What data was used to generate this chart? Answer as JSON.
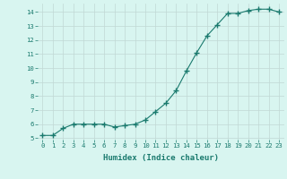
{
  "x": [
    0,
    1,
    2,
    3,
    4,
    5,
    6,
    7,
    8,
    9,
    10,
    11,
    12,
    13,
    14,
    15,
    16,
    17,
    18,
    19,
    20,
    21,
    22,
    23
  ],
  "y": [
    5.2,
    5.2,
    5.7,
    6.0,
    6.0,
    6.0,
    6.0,
    5.8,
    5.9,
    6.0,
    6.3,
    6.9,
    7.5,
    8.4,
    9.8,
    11.1,
    12.3,
    13.1,
    13.9,
    13.9,
    14.1,
    14.2,
    14.2,
    14.0
  ],
  "line_color": "#1a7a6e",
  "marker": "+",
  "marker_size": 4.0,
  "bg_color": "#d8f5f0",
  "grid_color": "#c0d8d4",
  "xlabel": "Humidex (Indice chaleur)",
  "xlim": [
    -0.5,
    23.5
  ],
  "ylim": [
    4.9,
    14.6
  ],
  "yticks": [
    5,
    6,
    7,
    8,
    9,
    10,
    11,
    12,
    13,
    14
  ],
  "xticks": [
    0,
    1,
    2,
    3,
    4,
    5,
    6,
    7,
    8,
    9,
    10,
    11,
    12,
    13,
    14,
    15,
    16,
    17,
    18,
    19,
    20,
    21,
    22,
    23
  ],
  "tick_fontsize": 5.2,
  "xlabel_fontsize": 6.5,
  "line_width": 0.8,
  "marker_color": "#1a7a6e"
}
